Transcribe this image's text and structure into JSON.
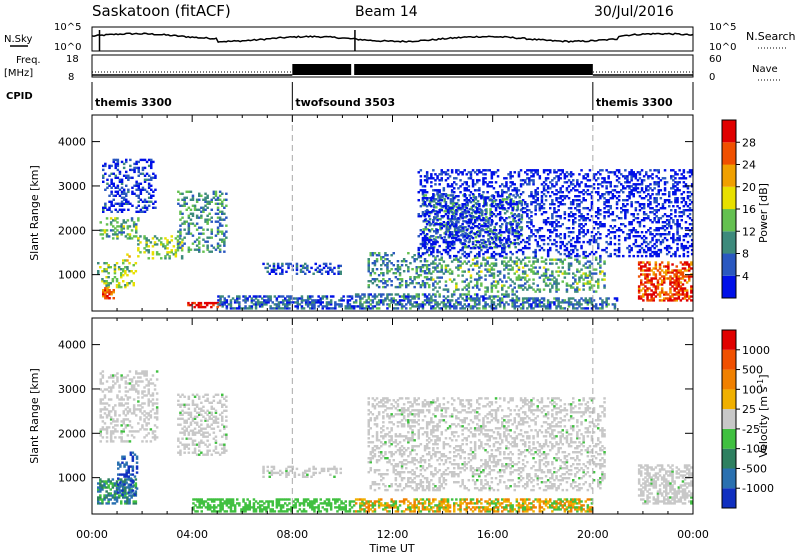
{
  "header": {
    "title": "Saskatoon (fitACF)",
    "beam": "Beam 14",
    "date": "30/Jul/2016"
  },
  "strip": {
    "nsky_label": "N.Sky",
    "nsky_ticks": [
      "10^5",
      "10^0"
    ],
    "nsearch_label": "N.Search",
    "nsearch_ticks": [
      "10^5",
      "10^0"
    ],
    "freq_label": "Freq.",
    "freq_unit": "[MHz]",
    "freq_ticks": [
      "18",
      "8"
    ],
    "nave_label": "Nave",
    "nave_ticks": [
      "60",
      "0"
    ],
    "cpid_label": "CPID"
  },
  "chart_data": [
    {
      "type": "heatmap",
      "panel": "power",
      "ylabel": "Slant Range [km]",
      "xlabel": "",
      "ylim": [
        180,
        4600
      ],
      "yticks": [
        1000,
        2000,
        3000,
        4000
      ],
      "colorbar": {
        "label": "Power [dB]",
        "range": [
          0,
          32
        ],
        "tick_labels": [
          "4",
          "8",
          "12",
          "16",
          "20",
          "24",
          "28"
        ],
        "colors": [
          "#0010e8",
          "#2a58c0",
          "#3d8a7c",
          "#64c050",
          "#e8e000",
          "#f0a000",
          "#f05000",
          "#e00000"
        ]
      },
      "scatter_blobs": [
        {
          "t": [
            0.2,
            1.8
          ],
          "r": [
            700,
            1300
          ],
          "level": 0.45
        },
        {
          "t": [
            0.3,
            1.9
          ],
          "r": [
            1800,
            2300
          ],
          "level": 0.4
        },
        {
          "t": [
            0.4,
            2.6
          ],
          "r": [
            2400,
            3600
          ],
          "level": 0.1
        },
        {
          "t": [
            1.2,
            1.6
          ],
          "r": [
            1300,
            1500
          ],
          "level": 0.55
        },
        {
          "t": [
            0.4,
            0.9
          ],
          "r": [
            450,
            700
          ],
          "level": 0.8
        },
        {
          "t": [
            1.8,
            3.6
          ],
          "r": [
            1350,
            1900
          ],
          "level": 0.45
        },
        {
          "t": [
            3.4,
            5.4
          ],
          "r": [
            1500,
            2900
          ],
          "level": 0.3
        },
        {
          "t": [
            3.8,
            5.1
          ],
          "r": [
            250,
            400
          ],
          "level": 0.95
        },
        {
          "t": [
            5.0,
            10.5
          ],
          "r": [
            220,
            520
          ],
          "level": 0.2
        },
        {
          "t": [
            6.8,
            10.0
          ],
          "r": [
            1000,
            1250
          ],
          "level": 0.15
        },
        {
          "t": [
            10.5,
            17.0
          ],
          "r": [
            220,
            600
          ],
          "level": 0.25
        },
        {
          "t": [
            11.0,
            13.5
          ],
          "r": [
            700,
            1500
          ],
          "level": 0.3
        },
        {
          "t": [
            13.2,
            17.2
          ],
          "r": [
            1600,
            2800
          ],
          "level": 0.3
        },
        {
          "t": [
            13.5,
            20.5
          ],
          "r": [
            600,
            1400
          ],
          "level": 0.35
        },
        {
          "t": [
            13.0,
            24.0
          ],
          "r": [
            1400,
            3400
          ],
          "level": 0.05
        },
        {
          "t": [
            17.0,
            21.0
          ],
          "r": [
            220,
            500
          ],
          "level": 0.25
        },
        {
          "t": [
            21.8,
            24.0
          ],
          "r": [
            400,
            1300
          ],
          "level": 0.85
        }
      ]
    },
    {
      "type": "heatmap",
      "panel": "velocity",
      "ylabel": "Slant Range [km]",
      "xlabel": "Time UT",
      "x_tick_labels": [
        "00:00",
        "04:00",
        "08:00",
        "12:00",
        "16:00",
        "20:00",
        "00:00"
      ],
      "xlim": [
        0,
        24
      ],
      "ylim": [
        180,
        4600
      ],
      "yticks": [
        1000,
        2000,
        3000,
        4000
      ],
      "colorbar": {
        "label": "Velocity [m s^-1]",
        "tick_labels": [
          "1000",
          "500",
          "100",
          "25",
          "-25",
          "-100",
          "-500",
          "-1000"
        ],
        "colors": [
          "#1030c0",
          "#2a70b0",
          "#2e8060",
          "#40c040",
          "#c8c8c8",
          "#f0b000",
          "#f08000",
          "#f05000",
          "#e00000"
        ]
      },
      "scatter_blobs": [
        {
          "t": [
            0.2,
            1.8
          ],
          "r": [
            400,
            1000
          ],
          "level": "toward_low"
        },
        {
          "t": [
            0.3,
            2.6
          ],
          "r": [
            1800,
            3400
          ],
          "level": "gray"
        },
        {
          "t": [
            1.0,
            1.8
          ],
          "r": [
            600,
            1600
          ],
          "level": "toward_high"
        },
        {
          "t": [
            3.4,
            5.4
          ],
          "r": [
            1500,
            2900
          ],
          "level": "gray"
        },
        {
          "t": [
            4.0,
            10.5
          ],
          "r": [
            220,
            520
          ],
          "level": "green"
        },
        {
          "t": [
            6.8,
            10.0
          ],
          "r": [
            1000,
            1250
          ],
          "level": "gray"
        },
        {
          "t": [
            10.5,
            20.0
          ],
          "r": [
            220,
            520
          ],
          "level": "orange"
        },
        {
          "t": [
            11.0,
            20.5
          ],
          "r": [
            700,
            2800
          ],
          "level": "gray"
        },
        {
          "t": [
            21.8,
            24.0
          ],
          "r": [
            400,
            1300
          ],
          "level": "gray"
        }
      ]
    }
  ],
  "cpid_segments": [
    {
      "start": 0,
      "end": 8,
      "name": "themis 3300"
    },
    {
      "start": 8,
      "end": 20,
      "name": "twofsound 3503"
    },
    {
      "start": 20,
      "end": 24,
      "name": "themis 3300"
    }
  ]
}
